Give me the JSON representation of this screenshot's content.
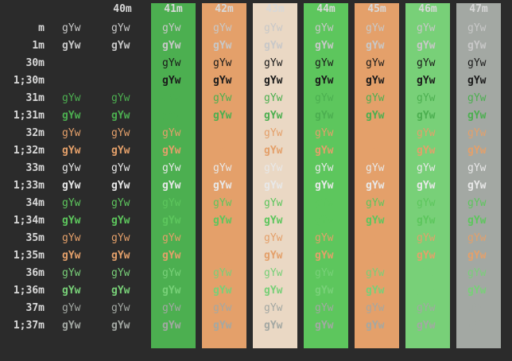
{
  "terminal": {
    "sample_text": "gYw",
    "column_headers": [
      "",
      "40m",
      "41m",
      "42m",
      "43m",
      "44m",
      "45m",
      "46m",
      "47m"
    ],
    "row_labels": [
      "m",
      "1m",
      "30m",
      "1;30m",
      "31m",
      "1;31m",
      "32m",
      "1;32m",
      "33m",
      "1;33m",
      "34m",
      "1;34m",
      "35m",
      "1;35m",
      "36m",
      "1;36m",
      "37m",
      "1;37m"
    ],
    "background_colors": {
      "40m": "#2b2b2b",
      "41m": "#4caf50",
      "42m": "#e4a06a",
      "43m": "#ead8c4",
      "44m": "#5dc65d",
      "45m": "#e4a06a",
      "46m": "#78d078",
      "47m": "#a3a8a3"
    },
    "foreground_colors": {
      "default": "#c8c8c8",
      "30m": "#1a1a1a",
      "31m": "#4caf50",
      "32m": "#e4a06a",
      "33m": "#e8e8e8",
      "34m": "#5dc65d",
      "35m": "#e4a06a",
      "36m": "#78d078",
      "37m": "#a3a8a3"
    }
  }
}
